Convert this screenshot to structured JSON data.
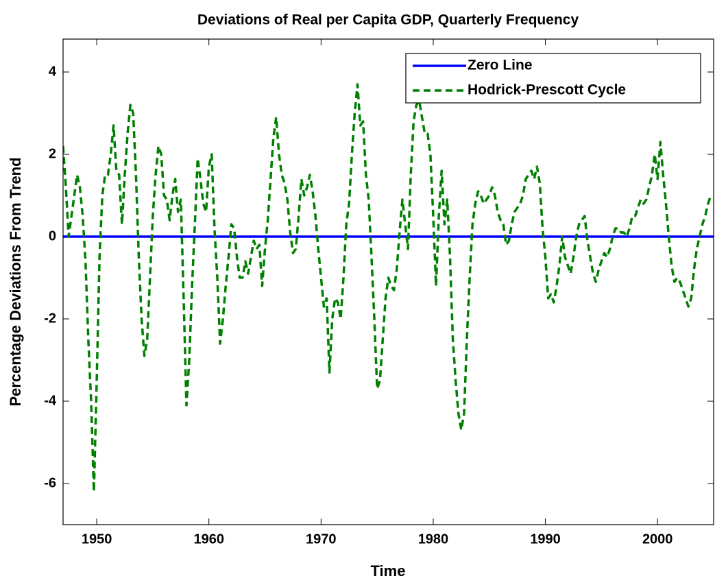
{
  "chart_data": {
    "type": "line",
    "title": "Deviations of Real per Capita GDP, Quarterly Frequency",
    "xlabel": "Time",
    "ylabel": "Percentage Deviations From Trend",
    "xlim": [
      1947,
      2005
    ],
    "ylim": [
      -7,
      4.8
    ],
    "xticks": [
      1950,
      1960,
      1970,
      1980,
      1990,
      2000
    ],
    "yticks": [
      -6,
      -4,
      -2,
      0,
      2,
      4
    ],
    "grid": false,
    "legend": "upper right",
    "series": [
      {
        "name": "Zero Line",
        "color": "#0000ff",
        "dash": false,
        "x": [
          1947,
          2005
        ],
        "values": [
          0,
          0
        ]
      },
      {
        "name": "Hodrick-Prescott Cycle",
        "color": "#008000",
        "dash": true,
        "x": [
          1947,
          1947.25,
          1947.5,
          1947.75,
          1948,
          1948.25,
          1948.5,
          1948.75,
          1949,
          1949.25,
          1949.5,
          1949.75,
          1950,
          1950.25,
          1950.5,
          1950.75,
          1951,
          1951.25,
          1951.5,
          1951.75,
          1952,
          1952.25,
          1952.5,
          1952.75,
          1953,
          1953.25,
          1953.5,
          1953.75,
          1954,
          1954.25,
          1954.5,
          1954.75,
          1955,
          1955.25,
          1955.5,
          1955.75,
          1956,
          1956.25,
          1956.5,
          1956.75,
          1957,
          1957.25,
          1957.5,
          1957.75,
          1958,
          1958.25,
          1958.5,
          1958.75,
          1959,
          1959.25,
          1959.5,
          1959.75,
          1960,
          1960.25,
          1960.5,
          1960.75,
          1961,
          1961.25,
          1961.5,
          1961.75,
          1962,
          1962.25,
          1962.5,
          1962.75,
          1963,
          1963.25,
          1963.5,
          1963.75,
          1964,
          1964.25,
          1964.5,
          1964.75,
          1965,
          1965.25,
          1965.5,
          1965.75,
          1966,
          1966.25,
          1966.5,
          1966.75,
          1967,
          1967.25,
          1967.5,
          1967.75,
          1968,
          1968.25,
          1968.5,
          1968.75,
          1969,
          1969.25,
          1969.5,
          1969.75,
          1970,
          1970.25,
          1970.5,
          1970.75,
          1971,
          1971.25,
          1971.5,
          1971.75,
          1972,
          1972.25,
          1972.5,
          1972.75,
          1973,
          1973.25,
          1973.5,
          1973.75,
          1974,
          1974.25,
          1974.5,
          1974.75,
          1975,
          1975.25,
          1975.5,
          1975.75,
          1976,
          1976.25,
          1976.5,
          1976.75,
          1977,
          1977.25,
          1977.5,
          1977.75,
          1978,
          1978.25,
          1978.5,
          1978.75,
          1979,
          1979.25,
          1979.5,
          1979.75,
          1980,
          1980.25,
          1980.5,
          1980.75,
          1981,
          1981.25,
          1981.5,
          1981.75,
          1982,
          1982.25,
          1982.5,
          1982.75,
          1983,
          1983.25,
          1983.5,
          1983.75,
          1984,
          1984.25,
          1984.5,
          1984.75,
          1985,
          1985.25,
          1985.5,
          1985.75,
          1986,
          1986.25,
          1986.5,
          1986.75,
          1987,
          1987.25,
          1987.5,
          1987.75,
          1988,
          1988.25,
          1988.5,
          1988.75,
          1989,
          1989.25,
          1989.5,
          1989.75,
          1990,
          1990.25,
          1990.5,
          1990.75,
          1991,
          1991.25,
          1991.5,
          1991.75,
          1992,
          1992.25,
          1992.5,
          1992.75,
          1993,
          1993.25,
          1993.5,
          1993.75,
          1994,
          1994.25,
          1994.5,
          1994.75,
          1995,
          1995.25,
          1995.5,
          1995.75,
          1996,
          1996.25,
          1996.5,
          1996.75,
          1997,
          1997.25,
          1997.5,
          1997.75,
          1998,
          1998.25,
          1998.5,
          1998.75,
          1999,
          1999.25,
          1999.5,
          1999.75,
          2000,
          2000.25,
          2000.5,
          2000.75,
          2001,
          2001.25,
          2001.5,
          2001.75,
          2002,
          2002.25,
          2002.5,
          2002.75,
          2003,
          2003.25,
          2003.5,
          2003.75,
          2004,
          2004.25,
          2004.5,
          2004.75
        ],
        "values": [
          2.2,
          1.2,
          0.0,
          0.5,
          1.0,
          1.5,
          1.2,
          0.5,
          -0.6,
          -2.5,
          -4.0,
          -6.2,
          -3.5,
          -0.5,
          1.0,
          1.5,
          1.5,
          2.0,
          2.7,
          1.6,
          1.5,
          0.3,
          1.5,
          2.5,
          3.2,
          3.0,
          1.5,
          -0.5,
          -2.0,
          -2.9,
          -2.5,
          -1.0,
          0.5,
          1.5,
          2.2,
          2.0,
          1.0,
          0.9,
          0.4,
          1.0,
          1.4,
          0.6,
          0.9,
          -1.5,
          -4.1,
          -3.0,
          -1.2,
          0.3,
          1.9,
          1.4,
          0.8,
          0.6,
          1.7,
          2.0,
          0.2,
          -1.0,
          -2.6,
          -2.0,
          -1.2,
          -0.5,
          0.3,
          0.2,
          -0.5,
          -1.0,
          -1.0,
          -0.6,
          -0.9,
          -0.5,
          -0.1,
          -0.3,
          -0.2,
          -1.2,
          -0.3,
          0.4,
          1.4,
          2.4,
          2.9,
          2.0,
          1.5,
          1.3,
          0.9,
          0.1,
          -0.4,
          -0.3,
          0.5,
          1.4,
          1.0,
          1.2,
          1.5,
          1.1,
          0.5,
          -0.3,
          -1.0,
          -1.7,
          -1.5,
          -3.3,
          -2.0,
          -1.5,
          -1.6,
          -2.0,
          -1.0,
          0.3,
          0.8,
          2.0,
          3.0,
          3.7,
          2.7,
          2.8,
          1.5,
          0.9,
          -0.5,
          -2.0,
          -3.7,
          -3.5,
          -2.5,
          -1.5,
          -1.0,
          -1.2,
          -1.3,
          -0.8,
          0.1,
          0.9,
          0.3,
          -0.3,
          1.5,
          2.8,
          3.2,
          3.3,
          2.9,
          2.5,
          2.5,
          2.0,
          0.5,
          -1.2,
          0.5,
          1.6,
          0.3,
          0.9,
          -0.5,
          -2.5,
          -3.5,
          -4.3,
          -4.7,
          -4.3,
          -2.5,
          -1.0,
          0.3,
          0.8,
          1.1,
          1.0,
          0.8,
          0.9,
          1.0,
          1.2,
          1.0,
          0.6,
          0.4,
          0.3,
          -0.2,
          -0.1,
          0.3,
          0.6,
          0.7,
          0.8,
          1.0,
          1.4,
          1.5,
          1.6,
          1.4,
          1.7,
          1.3,
          0.2,
          -0.5,
          -1.5,
          -1.4,
          -1.6,
          -1.2,
          -0.7,
          0.0,
          -0.5,
          -0.7,
          -0.9,
          -0.5,
          0.0,
          0.3,
          0.4,
          0.5,
          -0.1,
          -0.5,
          -0.9,
          -1.1,
          -0.8,
          -0.6,
          -0.4,
          -0.5,
          -0.3,
          0.0,
          0.2,
          0.2,
          0.1,
          0.1,
          0.0,
          0.2,
          0.5,
          0.5,
          0.7,
          0.9,
          0.8,
          0.9,
          1.2,
          1.5,
          2.0,
          1.4,
          2.3,
          1.5,
          0.8,
          0.0,
          -0.7,
          -1.1,
          -1.0,
          -1.1,
          -1.3,
          -1.5,
          -1.7,
          -1.5,
          -0.8,
          -0.3,
          0.0,
          0.3,
          0.5,
          0.8,
          1.0
        ]
      }
    ]
  }
}
